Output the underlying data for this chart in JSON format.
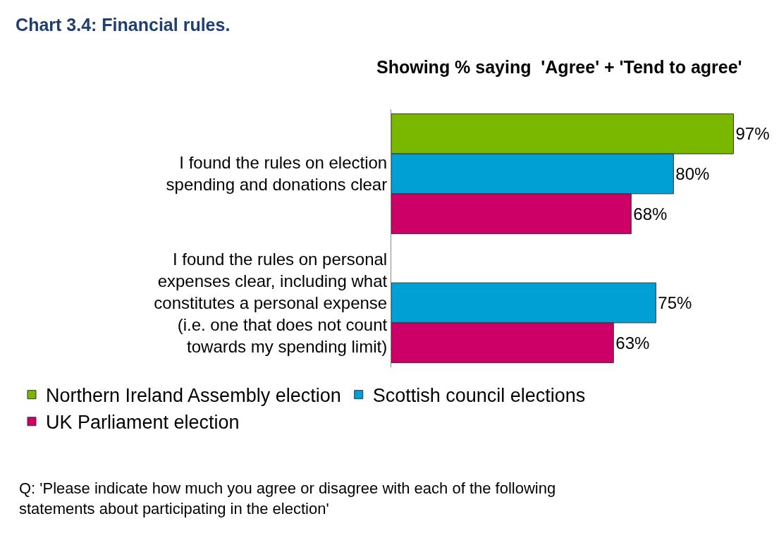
{
  "chart_data": {
    "type": "bar",
    "orientation": "horizontal",
    "title": "Chart 3.4: Financial rules.",
    "subtitle": "Showing % saying  'Agree' + 'Tend to agree'",
    "categories": [
      "I found the rules on election spending and donations clear",
      "I found the rules on personal expenses clear, including what constitutes a personal expense (i.e. one that does not count towards my spending limit)"
    ],
    "series": [
      {
        "name": "Northern Ireland Assembly election",
        "color": "#7ab800",
        "values": [
          97,
          null
        ],
        "value_labels": [
          "97%",
          null
        ]
      },
      {
        "name": "Scottish council elections",
        "color": "#009fd4",
        "values": [
          80,
          75
        ],
        "value_labels": [
          "80%",
          "75%"
        ]
      },
      {
        "name": "UK Parliament election",
        "color": "#cc0066",
        "values": [
          68,
          63
        ],
        "value_labels": [
          "68%",
          "63%"
        ]
      }
    ],
    "legend": "bottom",
    "grid": false,
    "annotations": [
      "Q: 'Please indicate how much you agree or disagree with each of the following statements about participating in the election'"
    ]
  }
}
